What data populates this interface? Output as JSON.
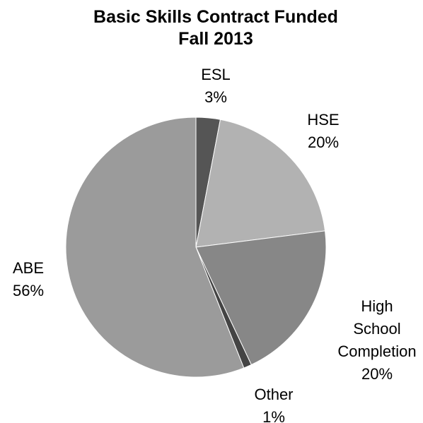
{
  "chart_data": {
    "type": "pie",
    "title": [
      "Basic Skills Contract Funded",
      "Fall 2013"
    ],
    "start_angle_deg": 0,
    "direction": "clockwise",
    "legend": "none",
    "slices": [
      {
        "key": "esl",
        "label_lines": [
          "ESL"
        ],
        "percent_label": "3%",
        "value": 3,
        "color": "#555555"
      },
      {
        "key": "hse",
        "label_lines": [
          "HSE"
        ],
        "percent_label": "20%",
        "value": 20,
        "color": "#b2b2b2"
      },
      {
        "key": "hsc",
        "label_lines": [
          "High",
          "School",
          "Completion"
        ],
        "percent_label": "20%",
        "value": 20,
        "color": "#878787"
      },
      {
        "key": "other",
        "label_lines": [
          "Other"
        ],
        "percent_label": "1%",
        "value": 1,
        "color": "#444444"
      },
      {
        "key": "abe",
        "label_lines": [
          "ABE"
        ],
        "percent_label": "56%",
        "value": 56,
        "color": "#9b9b9b"
      }
    ]
  }
}
